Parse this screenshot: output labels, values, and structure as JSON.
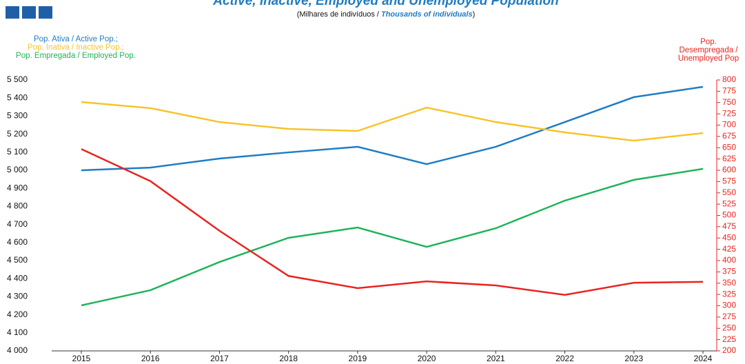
{
  "chart_data": {
    "type": "line",
    "title": "Active, Inactive, Employed and Unemployed Population",
    "subtitle": [
      "(Milhares de indivíduos / ",
      "Thousands of individuals",
      ")"
    ],
    "categories": [
      "2015",
      "2016",
      "2017",
      "2018",
      "2019",
      "2020",
      "2021",
      "2022",
      "2023",
      "2024"
    ],
    "series": [
      {
        "name": "Pop. Ativa /  Active Pop.;",
        "color": "#1f7cc4",
        "values": [
          5000,
          5015,
          5065,
          5099,
          5130,
          5034,
          5130,
          5267,
          5405,
          5462
        ]
      },
      {
        "name": "Pop. Inativa / Inactive Pop.;",
        "color": "#f6c42a",
        "values": [
          5378,
          5344,
          5267,
          5229,
          5218,
          5347,
          5267,
          5210,
          5164,
          5206
        ]
      },
      {
        "name": "Pop. Empregada / Employed Pop.",
        "color": "#1fb35a",
        "values": [
          4252,
          4336,
          4492,
          4626,
          4683,
          4576,
          4679,
          4832,
          4947,
          5008
        ]
      },
      {
        "name": "Pop. Desempregada / Unemployed Pop",
        "color": "#e8231f",
        "axis": "y2",
        "values": [
          647,
          576,
          466,
          366,
          339,
          354,
          345,
          324,
          351,
          353
        ]
      }
    ],
    "ylim": [
      4000,
      5500
    ],
    "yticks": [
      {
        "value": 4000,
        "label": "4 000"
      },
      {
        "value": 4100,
        "label": "4 100"
      },
      {
        "value": 4200,
        "label": "4 200"
      },
      {
        "value": 4300,
        "label": "4 300"
      },
      {
        "value": 4400,
        "label": "4 400"
      },
      {
        "value": 4500,
        "label": "4 500"
      },
      {
        "value": 4600,
        "label": "4 600"
      },
      {
        "value": 4700,
        "label": "4 700"
      },
      {
        "value": 4800,
        "label": "4 800"
      },
      {
        "value": 4900,
        "label": "4 900"
      },
      {
        "value": 5000,
        "label": "5 000"
      },
      {
        "value": 5100,
        "label": "5 100"
      },
      {
        "value": 5200,
        "label": "5 200"
      },
      {
        "value": 5300,
        "label": "5 300"
      },
      {
        "value": 5400,
        "label": "5 400"
      },
      {
        "value": 5500,
        "label": "5 500"
      }
    ],
    "y2lim": [
      200,
      800
    ],
    "y2ticks": [
      200,
      225,
      250,
      275,
      300,
      325,
      350,
      375,
      400,
      425,
      450,
      475,
      500,
      525,
      550,
      575,
      600,
      625,
      650,
      675,
      700,
      725,
      750,
      775,
      800
    ],
    "grid": false
  }
}
